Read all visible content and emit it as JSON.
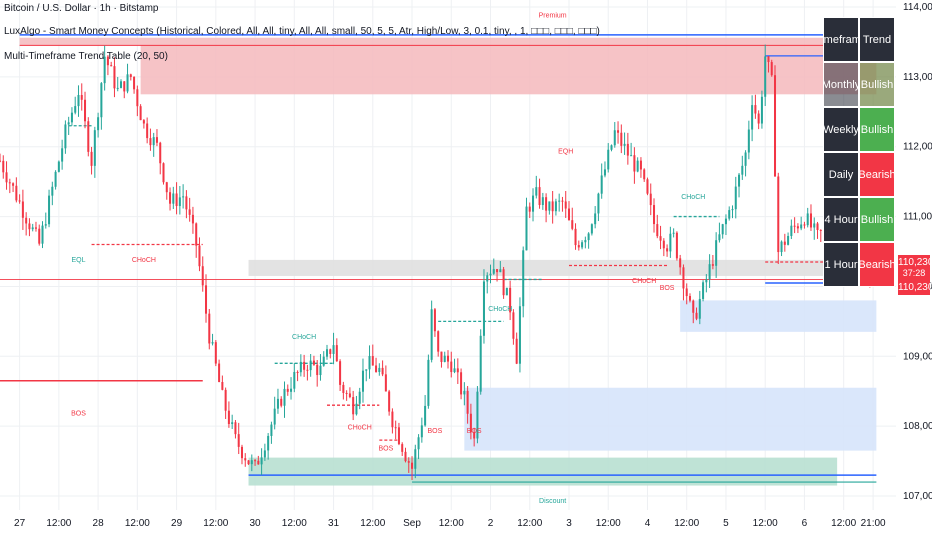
{
  "header": {
    "title": "Bitcoin / U.S. Dollar · 1h · Bitstamp",
    "indicator1": "LuxAlgo - Smart Money Concepts (Historical, Colored, All, All, tiny, All, All, small, 50, 5, 5, Atr, High/Low, 3, 0.1, tiny, , 1, □□□, □□□, □□□)",
    "indicator2": "Multi-Timeframe Trend Table (20, 50)"
  },
  "colors": {
    "bull": "#26a69a",
    "bear": "#f23645",
    "premium_zone": "#f4b8bc",
    "discount_zone": "#b8e0d2",
    "blue_zone": "#d6e4fb",
    "grey_zone": "#e0e0e0",
    "blue_line": "#2962ff",
    "grid": "#eef0f3"
  },
  "trend_table": {
    "headers": [
      "Timeframe",
      "Trend"
    ],
    "rows": [
      {
        "tf": "Monthly",
        "trend": "Bullish"
      },
      {
        "tf": "Weekly",
        "trend": "Bullish"
      },
      {
        "tf": "Daily",
        "trend": "Bearish"
      },
      {
        "tf": "4 Hour",
        "trend": "Bullish"
      },
      {
        "tf": "1 Hour",
        "trend": "Bearish"
      }
    ]
  },
  "price_badges": [
    {
      "price": 110230,
      "label": "110,230",
      "sub": "37:28",
      "color": "#f23645"
    },
    {
      "price": 110180,
      "label": "110,230",
      "sub": "",
      "color": "#f23645"
    }
  ],
  "chart_data": {
    "type": "candlestick",
    "symbol": "BTCUSD",
    "timeframe": "1h",
    "exchange": "Bitstamp",
    "ylim": [
      106800,
      114100
    ],
    "y_ticks": [
      107000,
      108000,
      109000,
      110000,
      111000,
      112000,
      113000,
      114000
    ],
    "y_tick_labels": [
      "107,000",
      "108,000",
      "109,000",
      "110,000",
      "111,000",
      "112,000",
      "113,000",
      "114,000"
    ],
    "x_ticks": [
      {
        "label": "27",
        "t": 0
      },
      {
        "label": "12:00",
        "t": 12
      },
      {
        "label": "28",
        "t": 24
      },
      {
        "label": "12:00",
        "t": 36
      },
      {
        "label": "29",
        "t": 48
      },
      {
        "label": "12:00",
        "t": 60
      },
      {
        "label": "30",
        "t": 72
      },
      {
        "label": "12:00",
        "t": 84
      },
      {
        "label": "31",
        "t": 96
      },
      {
        "label": "12:00",
        "t": 108
      },
      {
        "label": "Sep",
        "t": 120
      },
      {
        "label": "12:00",
        "t": 132
      },
      {
        "label": "2",
        "t": 144
      },
      {
        "label": "12:00",
        "t": 156
      },
      {
        "label": "3",
        "t": 168
      },
      {
        "label": "12:00",
        "t": 180
      },
      {
        "label": "4",
        "t": 192
      },
      {
        "label": "12:00",
        "t": 204
      },
      {
        "label": "5",
        "t": 216
      },
      {
        "label": "12:00",
        "t": 228
      },
      {
        "label": "6",
        "t": 240
      },
      {
        "label": "12:00",
        "t": 252
      },
      {
        "label": "21:00",
        "t": 261
      }
    ],
    "t_range": [
      -6,
      268
    ],
    "anchors": [
      [
        -6,
        111800
      ],
      [
        0,
        111200
      ],
      [
        6,
        110600
      ],
      [
        10,
        111400
      ],
      [
        14,
        112200
      ],
      [
        18,
        112800
      ],
      [
        22,
        111800
      ],
      [
        26,
        113300
      ],
      [
        30,
        112800
      ],
      [
        34,
        113000
      ],
      [
        38,
        112300
      ],
      [
        42,
        112000
      ],
      [
        46,
        111200
      ],
      [
        50,
        111300
      ],
      [
        54,
        110600
      ],
      [
        58,
        109300
      ],
      [
        62,
        108400
      ],
      [
        66,
        107800
      ],
      [
        70,
        107500
      ],
      [
        72,
        107400
      ],
      [
        76,
        107900
      ],
      [
        80,
        108400
      ],
      [
        84,
        108700
      ],
      [
        88,
        108900
      ],
      [
        92,
        108800
      ],
      [
        96,
        109200
      ],
      [
        98,
        108600
      ],
      [
        102,
        108300
      ],
      [
        106,
        108900
      ],
      [
        110,
        108800
      ],
      [
        114,
        108100
      ],
      [
        118,
        107600
      ],
      [
        120,
        107400
      ],
      [
        124,
        108300
      ],
      [
        126,
        109600
      ],
      [
        128,
        109000
      ],
      [
        132,
        108900
      ],
      [
        136,
        108400
      ],
      [
        139,
        107800
      ],
      [
        142,
        110200
      ],
      [
        146,
        110300
      ],
      [
        150,
        109700
      ],
      [
        152,
        109000
      ],
      [
        155,
        111100
      ],
      [
        158,
        111300
      ],
      [
        162,
        111100
      ],
      [
        166,
        111200
      ],
      [
        170,
        110600
      ],
      [
        174,
        110800
      ],
      [
        178,
        111500
      ],
      [
        182,
        112200
      ],
      [
        186,
        111900
      ],
      [
        190,
        111600
      ],
      [
        194,
        110900
      ],
      [
        198,
        110600
      ],
      [
        200,
        110700
      ],
      [
        204,
        109900
      ],
      [
        206,
        109500
      ],
      [
        210,
        110100
      ],
      [
        214,
        110700
      ],
      [
        218,
        111200
      ],
      [
        222,
        111900
      ],
      [
        224,
        112700
      ],
      [
        226,
        112300
      ],
      [
        228,
        113300
      ],
      [
        230,
        112900
      ],
      [
        232,
        110500
      ],
      [
        236,
        110800
      ],
      [
        240,
        111000
      ],
      [
        244,
        110700
      ],
      [
        248,
        110900
      ],
      [
        252,
        110500
      ],
      [
        256,
        110300
      ],
      [
        261,
        110230
      ]
    ],
    "zones": [
      {
        "kind": "premium",
        "t0": 0,
        "t1": 262,
        "p0": 113450,
        "p1": 113560
      },
      {
        "kind": "premium",
        "t0": 37,
        "t1": 262,
        "p0": 112750,
        "p1": 113450
      },
      {
        "kind": "grey",
        "t0": 70,
        "t1": 262,
        "p0": 110150,
        "p1": 110380
      },
      {
        "kind": "blue",
        "t0": 202,
        "t1": 262,
        "p0": 109350,
        "p1": 109800
      },
      {
        "kind": "blue",
        "t0": 136,
        "t1": 262,
        "p0": 107650,
        "p1": 108550
      },
      {
        "kind": "discount",
        "t0": 70,
        "t1": 250,
        "p0": 107150,
        "p1": 107550
      }
    ],
    "lines": [
      {
        "color": "#2962ff",
        "t0": 0,
        "t1": 262,
        "p": 113600,
        "width": 1.5
      },
      {
        "color": "#f23645",
        "t0": 0,
        "t1": 262,
        "p": 113450,
        "width": 1
      },
      {
        "color": "#f23645",
        "t0": -6,
        "t1": 56,
        "p": 108650,
        "width": 1.5
      },
      {
        "color": "#2962ff",
        "t0": 70,
        "t1": 262,
        "p": 107300,
        "width": 1.5
      },
      {
        "color": "#26a69a",
        "t0": 120,
        "t1": 262,
        "p": 107200,
        "width": 1.2
      },
      {
        "color": "#f23645",
        "t0": -6,
        "t1": 262,
        "p": 110100,
        "width": 0.8
      },
      {
        "color": "#2962ff",
        "t0": 228,
        "t1": 262,
        "p": 110050,
        "width": 1.5
      },
      {
        "color": "#2962ff",
        "t0": 228,
        "t1": 262,
        "p": 113300,
        "width": 1.2
      }
    ],
    "structure_lines": [
      {
        "color": "#26a69a",
        "t0": 15,
        "t1": 22,
        "p": 112300,
        "dashed": true
      },
      {
        "color": "#f23645",
        "t0": 22,
        "t1": 56,
        "p": 110600,
        "dashed": true
      },
      {
        "color": "#26a69a",
        "t0": 78,
        "t1": 96,
        "p": 108900,
        "dashed": true
      },
      {
        "color": "#f23645",
        "t0": 94,
        "t1": 110,
        "p": 108300,
        "dashed": true
      },
      {
        "color": "#f23645",
        "t0": 110,
        "t1": 116,
        "p": 107800,
        "dashed": true
      },
      {
        "color": "#26a69a",
        "t0": 128,
        "t1": 148,
        "p": 109500,
        "dashed": true
      },
      {
        "color": "#26a69a",
        "t0": 148,
        "t1": 160,
        "p": 110100,
        "dashed": true
      },
      {
        "color": "#f23645",
        "t0": 168,
        "t1": 198,
        "p": 110300,
        "dashed": true
      },
      {
        "color": "#26a69a",
        "t0": 200,
        "t1": 214,
        "p": 111000,
        "dashed": true
      },
      {
        "color": "#f23645",
        "t0": 228,
        "t1": 262,
        "p": 110350,
        "dashed": true
      }
    ],
    "annotations": [
      {
        "text": "Premium",
        "t": 163,
        "p": 113850,
        "color": "#f23645"
      },
      {
        "text": "Discount",
        "t": 163,
        "p": 106900,
        "color": "#26a69a"
      },
      {
        "text": "EQL",
        "t": 18,
        "p": 110350,
        "color": "#26a69a"
      },
      {
        "text": "CHoCH",
        "t": 38,
        "p": 110350,
        "color": "#f23645"
      },
      {
        "text": "BOS",
        "t": 18,
        "p": 108150,
        "color": "#f23645"
      },
      {
        "text": "CHoCH",
        "t": 87,
        "p": 109250,
        "color": "#26a69a"
      },
      {
        "text": "CHoCH",
        "t": 104,
        "p": 107950,
        "color": "#f23645"
      },
      {
        "text": "BOS",
        "t": 112,
        "p": 107650,
        "color": "#f23645"
      },
      {
        "text": "BOS",
        "t": 127,
        "p": 107900,
        "color": "#f23645"
      },
      {
        "text": "BOS",
        "t": 139,
        "p": 107900,
        "color": "#f23645"
      },
      {
        "text": "CHoCH",
        "t": 147,
        "p": 109650,
        "color": "#26a69a"
      },
      {
        "text": "EQH",
        "t": 167,
        "p": 111900,
        "color": "#f23645"
      },
      {
        "text": "CHoCH",
        "t": 191,
        "p": 110050,
        "color": "#f23645"
      },
      {
        "text": "BOS",
        "t": 198,
        "p": 109950,
        "color": "#f23645"
      },
      {
        "text": "CHoCH",
        "t": 206,
        "p": 111250,
        "color": "#26a69a"
      },
      {
        "text": "EQH",
        "t": 248,
        "p": 110700,
        "color": "#f23645"
      }
    ]
  }
}
